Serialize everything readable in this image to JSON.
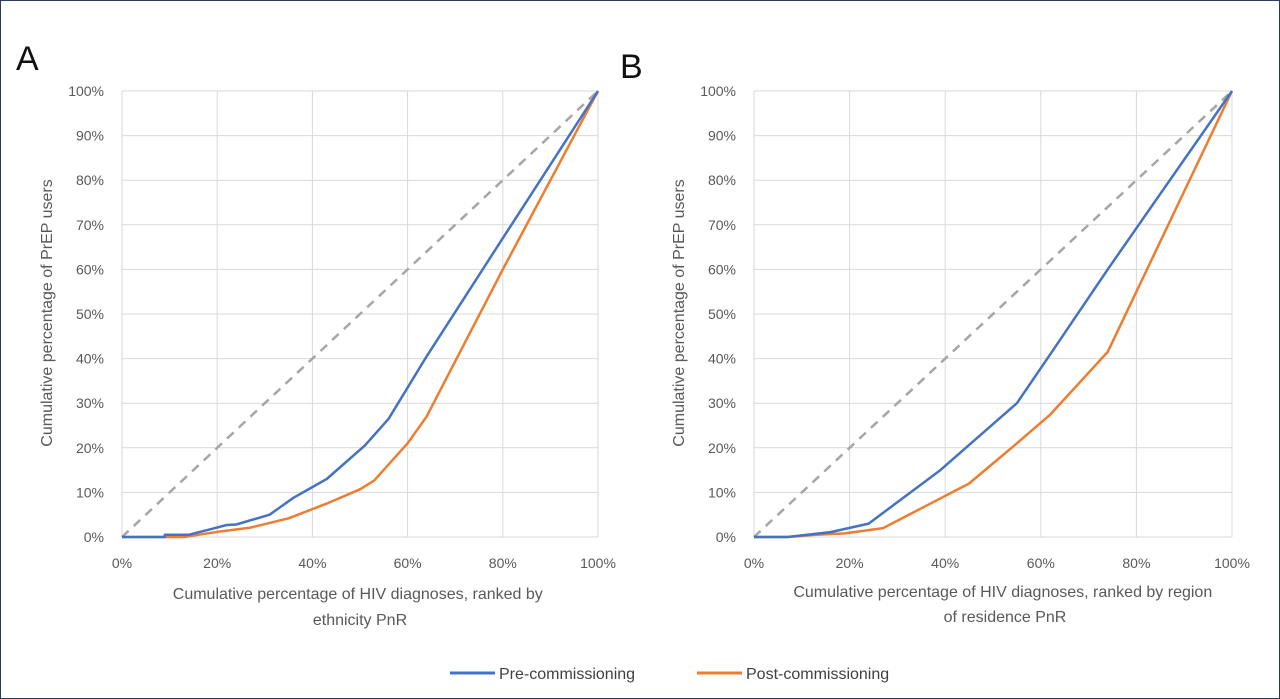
{
  "legend": {
    "items": [
      {
        "label": "Pre-commissioning",
        "color": "#4472c4"
      },
      {
        "label": "Post-commissioning",
        "color": "#ed7d31"
      }
    ]
  },
  "chart_data": [
    {
      "type": "line",
      "panel_label": "A",
      "xlabel": "Cumulative percentage of HIV diagnoses, ranked by ethnicity PnR",
      "ylabel": "Cumulative percentage of PrEP users",
      "xlim": [
        0,
        100
      ],
      "ylim": [
        0,
        100
      ],
      "x_ticks": [
        "0%",
        "20%",
        "40%",
        "60%",
        "80%",
        "100%"
      ],
      "y_ticks": [
        "0%",
        "10%",
        "20%",
        "30%",
        "40%",
        "50%",
        "60%",
        "70%",
        "80%",
        "90%",
        "100%"
      ],
      "grid": true,
      "reference_line": {
        "style": "dashed",
        "color": "#a6a6a6",
        "points": [
          [
            0,
            0
          ],
          [
            100,
            100
          ]
        ]
      },
      "series": [
        {
          "name": "Pre-commissioning",
          "color": "#4472c4",
          "points": [
            [
              0,
              0
            ],
            [
              9,
              0
            ],
            [
              9,
              0.5
            ],
            [
              14,
              0.5
            ],
            [
              18,
              1.6
            ],
            [
              22,
              2.7
            ],
            [
              24,
              2.8
            ],
            [
              31,
              5
            ],
            [
              36,
              8.8
            ],
            [
              43,
              13
            ],
            [
              51,
              20.5
            ],
            [
              56,
              26.5
            ],
            [
              64,
              40.5
            ],
            [
              80,
              67
            ],
            [
              100,
              100
            ]
          ]
        },
        {
          "name": "Post-commissioning",
          "color": "#ed7d31",
          "points": [
            [
              0,
              0
            ],
            [
              13,
              0
            ],
            [
              16,
              0.5
            ],
            [
              21,
              1.3
            ],
            [
              27,
              2.1
            ],
            [
              35,
              4.2
            ],
            [
              43,
              7.5
            ],
            [
              50,
              10.7
            ],
            [
              53,
              12.7
            ],
            [
              60,
              21
            ],
            [
              64,
              27
            ],
            [
              80,
              60
            ],
            [
              100,
              100
            ]
          ]
        }
      ]
    },
    {
      "type": "line",
      "panel_label": "B",
      "xlabel": "Cumulative percentage of HIV diagnoses, ranked by region of residence PnR",
      "ylabel": "Cumulative percentage of PrEP users",
      "xlim": [
        0,
        100
      ],
      "ylim": [
        0,
        100
      ],
      "x_ticks": [
        "0%",
        "20%",
        "40%",
        "60%",
        "80%",
        "100%"
      ],
      "y_ticks": [
        "0%",
        "10%",
        "20%",
        "30%",
        "40%",
        "50%",
        "60%",
        "70%",
        "80%",
        "90%",
        "100%"
      ],
      "grid": true,
      "reference_line": {
        "style": "dashed",
        "color": "#a6a6a6",
        "points": [
          [
            0,
            0
          ],
          [
            100,
            100
          ]
        ]
      },
      "series": [
        {
          "name": "Pre-commissioning",
          "color": "#4472c4",
          "points": [
            [
              0,
              0
            ],
            [
              7,
              0
            ],
            [
              16,
              1.1
            ],
            [
              24,
              3
            ],
            [
              39,
              15
            ],
            [
              55,
              30
            ],
            [
              62,
              41
            ],
            [
              74,
              60
            ],
            [
              100,
              100
            ]
          ]
        },
        {
          "name": "Post-commissioning",
          "color": "#ed7d31",
          "points": [
            [
              0,
              0
            ],
            [
              7,
              0
            ],
            [
              13,
              0.5
            ],
            [
              19,
              0.8
            ],
            [
              27,
              2
            ],
            [
              36,
              7
            ],
            [
              45,
              12
            ],
            [
              55,
              21
            ],
            [
              62,
              27.5
            ],
            [
              74,
              41.5
            ],
            [
              80,
              55
            ],
            [
              100,
              100
            ]
          ]
        }
      ]
    }
  ]
}
